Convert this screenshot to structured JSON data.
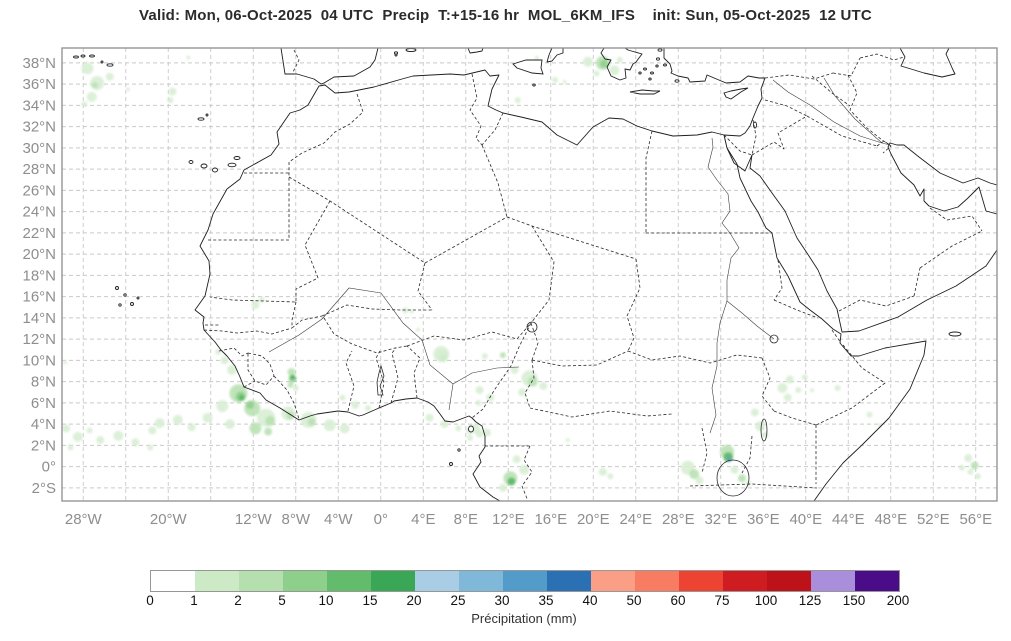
{
  "title": {
    "text": "Valid: Mon, 06-Oct-2025  04 UTC  Precip  T:+15-16 hr  MOL_6KM_IFS    init: Sun, 05-Oct-2025  12 UTC"
  },
  "map": {
    "lat_tick_values": [
      38,
      36,
      34,
      32,
      30,
      28,
      26,
      24,
      22,
      20,
      18,
      16,
      14,
      12,
      10,
      8,
      6,
      4,
      2,
      0,
      -2
    ],
    "lat_tick_labels": [
      "38°N",
      "36°N",
      "34°N",
      "32°N",
      "30°N",
      "28°N",
      "26°N",
      "24°N",
      "22°N",
      "20°N",
      "18°N",
      "16°N",
      "14°N",
      "12°N",
      "10°N",
      "8°N",
      "6°N",
      "4°N",
      "2°N",
      "0°",
      "2°S"
    ],
    "lon_tick_values": [
      -28,
      -20,
      -12,
      -8,
      -4,
      0,
      4,
      8,
      12,
      16,
      20,
      24,
      28,
      32,
      36,
      40,
      44,
      48,
      52,
      56
    ],
    "lon_tick_labels": [
      "28°W",
      "20°W",
      "12°W",
      "8°W",
      "4°W",
      "0°",
      "4°E",
      "8°E",
      "12°E",
      "16°E",
      "20°E",
      "24°E",
      "28°E",
      "32°E",
      "36°E",
      "40°E",
      "44°E",
      "48°E",
      "52°E",
      "56°E"
    ]
  },
  "legend": {
    "title": "Précipitation (mm)",
    "ticks": [
      "0",
      "1",
      "2",
      "5",
      "10",
      "15",
      "20",
      "25",
      "30",
      "35",
      "40",
      "50",
      "60",
      "75",
      "100",
      "125",
      "150",
      "200"
    ],
    "colors": [
      "#ffffff",
      "#cdeac6",
      "#b5dfaf",
      "#8ecf8c",
      "#63bc6b",
      "#3aa757",
      "#a8cde4",
      "#7fb8d9",
      "#539bc9",
      "#2b70b3",
      "#fa9f85",
      "#f87c62",
      "#ec4333",
      "#cf1c20",
      "#bd1219",
      "#a98fdb",
      "#4a0c87"
    ]
  },
  "chart_data": {
    "type": "heatmap",
    "title": "Precipitation forecast map",
    "units": "mm",
    "projection": "equirectangular",
    "lon_range": [
      -30,
      58
    ],
    "lat_range": [
      -3.2,
      39.4
    ],
    "grid": {
      "lon_step_deg": 4,
      "lat_step_deg": 2,
      "grid_on": true
    },
    "legend_levels_mm": [
      0,
      1,
      2,
      5,
      10,
      15,
      20,
      25,
      30,
      35,
      40,
      50,
      60,
      75,
      100,
      125,
      150,
      200
    ],
    "cell_colors": {
      "1": "#d8eed4",
      "2": "#b9e1b3",
      "3": "#90cf8e",
      "4": "#5cb868",
      "5": "#3aa757",
      "b": "#539bc9"
    },
    "precip_cells": [
      [
        -27.6,
        37.5,
        6,
        "1"
      ],
      [
        -26.7,
        36.1,
        7,
        "1"
      ],
      [
        -26.9,
        35.9,
        3,
        "2"
      ],
      [
        -27.2,
        34.8,
        5,
        "1"
      ],
      [
        -25.5,
        36.7,
        4,
        "1"
      ],
      [
        -27.9,
        34.1,
        3,
        "1"
      ],
      [
        -23.8,
        35.5,
        2,
        "1"
      ],
      [
        -19.6,
        35.3,
        4,
        "1"
      ],
      [
        -19.8,
        34.5,
        3,
        "1"
      ],
      [
        -18.1,
        38.5,
        2,
        "1"
      ],
      [
        14.7,
        38.5,
        2,
        "1"
      ],
      [
        16.4,
        36.4,
        3,
        "1"
      ],
      [
        17.3,
        36.2,
        2,
        "1"
      ],
      [
        19.5,
        38.1,
        5,
        "1"
      ],
      [
        20.9,
        38.0,
        7,
        "2"
      ],
      [
        21.0,
        37.9,
        4,
        "3"
      ],
      [
        22.0,
        37.3,
        5,
        "1"
      ],
      [
        20.3,
        37.0,
        3,
        "1"
      ],
      [
        22.5,
        38.3,
        3,
        "1"
      ],
      [
        12.9,
        34.5,
        3,
        "1"
      ],
      [
        -29.7,
        9.8,
        2,
        "1"
      ],
      [
        -29.6,
        3.6,
        4,
        "1"
      ],
      [
        -28.5,
        2.8,
        5,
        "1"
      ],
      [
        -27.4,
        3.4,
        3,
        "1"
      ],
      [
        -29.2,
        1.8,
        3,
        "1"
      ],
      [
        -26.4,
        2.5,
        4,
        "1"
      ],
      [
        -24.7,
        2.9,
        5,
        "1"
      ],
      [
        -23.1,
        2.3,
        4,
        "1"
      ],
      [
        -21.5,
        3.4,
        4,
        "1"
      ],
      [
        -20.8,
        4.1,
        5,
        "1"
      ],
      [
        -21.7,
        1.8,
        3,
        "1"
      ],
      [
        -19.1,
        4.4,
        5,
        "1"
      ],
      [
        -17.8,
        3.7,
        4,
        "1"
      ],
      [
        -11.8,
        15.2,
        4,
        "1"
      ],
      [
        -11.2,
        15.7,
        3,
        "1"
      ],
      [
        -14.7,
        10.0,
        4,
        "1"
      ],
      [
        -14.0,
        9.1,
        5,
        "1"
      ],
      [
        -15.3,
        10.8,
        3,
        "1"
      ],
      [
        -13.4,
        6.9,
        9,
        "2"
      ],
      [
        -13.2,
        6.6,
        5,
        "3"
      ],
      [
        -13.1,
        6.5,
        3,
        "4"
      ],
      [
        -12.1,
        5.5,
        8,
        "2"
      ],
      [
        -12.3,
        5.8,
        4,
        "3"
      ],
      [
        -10.8,
        4.6,
        9,
        "1"
      ],
      [
        -10.4,
        4.3,
        5,
        "2"
      ],
      [
        -8.7,
        5.0,
        7,
        "1"
      ],
      [
        -8.5,
        4.8,
        4,
        "2"
      ],
      [
        -6.8,
        4.4,
        8,
        "1"
      ],
      [
        -6.5,
        4.2,
        4,
        "2"
      ],
      [
        -4.8,
        3.9,
        6,
        "1"
      ],
      [
        -3.4,
        3.6,
        5,
        "1"
      ],
      [
        -14.9,
        5.7,
        6,
        "1"
      ],
      [
        -16.3,
        4.6,
        5,
        "1"
      ],
      [
        -14.2,
        4.0,
        5,
        "1"
      ],
      [
        -11.8,
        3.6,
        6,
        "2"
      ],
      [
        -10.6,
        3.3,
        4,
        "2"
      ],
      [
        -8.4,
        8.9,
        4,
        "2"
      ],
      [
        -8.3,
        8.3,
        4,
        "3"
      ],
      [
        -8.3,
        8.4,
        2,
        "5"
      ],
      [
        -8.5,
        7.7,
        3,
        "2"
      ],
      [
        -8.0,
        7.4,
        3,
        "1"
      ],
      [
        -2.4,
        5.8,
        4,
        "1"
      ],
      [
        -1.2,
        5.5,
        3,
        "1"
      ],
      [
        -3.6,
        6.5,
        3,
        "1"
      ],
      [
        2.3,
        14.7,
        3,
        "1"
      ],
      [
        2.9,
        14.6,
        2,
        "1"
      ],
      [
        3.5,
        12.9,
        2,
        "1"
      ],
      [
        5.8,
        10.4,
        6,
        "2"
      ],
      [
        5.9,
        10.3,
        3,
        "4"
      ],
      [
        5.7,
        10.6,
        8,
        "1"
      ],
      [
        4.6,
        4.6,
        4,
        "1"
      ],
      [
        6.0,
        4.0,
        4,
        "1"
      ],
      [
        7.3,
        3.6,
        3,
        "1"
      ],
      [
        8.4,
        3.4,
        4,
        "1"
      ],
      [
        9.3,
        3.1,
        4,
        "1"
      ],
      [
        14.0,
        8.3,
        8,
        "1"
      ],
      [
        14.3,
        8.0,
        5,
        "2"
      ],
      [
        15.3,
        7.6,
        4,
        "1"
      ],
      [
        13.3,
        7.0,
        4,
        "1"
      ],
      [
        11.5,
        10.5,
        3,
        "2"
      ],
      [
        9.8,
        10.4,
        3,
        "1"
      ],
      [
        12.6,
        9.1,
        4,
        "1"
      ],
      [
        9.3,
        7.2,
        4,
        "1"
      ],
      [
        10.3,
        6.5,
        4,
        "1"
      ],
      [
        9.2,
        6.0,
        3,
        "1"
      ],
      [
        8.9,
        3.6,
        5,
        "1"
      ],
      [
        10.0,
        3.2,
        4,
        "1"
      ],
      [
        8.4,
        2.7,
        3,
        "1"
      ],
      [
        12.2,
        -1.1,
        7,
        "2"
      ],
      [
        12.3,
        -1.4,
        4,
        "4"
      ],
      [
        13.5,
        -0.3,
        5,
        "1"
      ],
      [
        12.8,
        0.7,
        4,
        "1"
      ],
      [
        11.5,
        -2.0,
        4,
        "1"
      ],
      [
        17.6,
        2.5,
        2,
        "1"
      ],
      [
        20.9,
        -0.5,
        4,
        "1"
      ],
      [
        21.6,
        -0.9,
        3,
        "1"
      ],
      [
        28.9,
        -0.1,
        7,
        "1"
      ],
      [
        29.5,
        -0.7,
        5,
        "2"
      ],
      [
        30.0,
        -1.3,
        4,
        "1"
      ],
      [
        32.6,
        1.4,
        7,
        "2"
      ],
      [
        32.7,
        0.9,
        5,
        "4"
      ],
      [
        32.8,
        0.7,
        2,
        "b"
      ],
      [
        33.3,
        -0.3,
        4,
        "1"
      ],
      [
        34.0,
        -1.1,
        4,
        "2"
      ],
      [
        34.6,
        -1.6,
        3,
        "1"
      ],
      [
        35.2,
        5.1,
        4,
        "1"
      ],
      [
        35.7,
        3.8,
        5,
        "1"
      ],
      [
        36.2,
        3.0,
        3,
        "1"
      ],
      [
        37.8,
        7.4,
        5,
        "1"
      ],
      [
        38.5,
        8.2,
        4,
        "1"
      ],
      [
        39.3,
        7.2,
        3,
        "1"
      ],
      [
        38.3,
        6.5,
        4,
        "1"
      ],
      [
        39.9,
        8.4,
        3,
        "1"
      ],
      [
        40.6,
        7.2,
        2,
        "1"
      ],
      [
        43.0,
        7.4,
        3,
        "1"
      ],
      [
        46.0,
        4.9,
        3,
        "1"
      ],
      [
        47.0,
        3.9,
        2,
        "1"
      ],
      [
        55.3,
        0.8,
        4,
        "1"
      ],
      [
        55.9,
        0.1,
        4,
        "2"
      ],
      [
        55.5,
        -0.5,
        3,
        "1"
      ],
      [
        56.2,
        -0.9,
        3,
        "1"
      ],
      [
        54.7,
        -0.1,
        3,
        "1"
      ]
    ]
  }
}
